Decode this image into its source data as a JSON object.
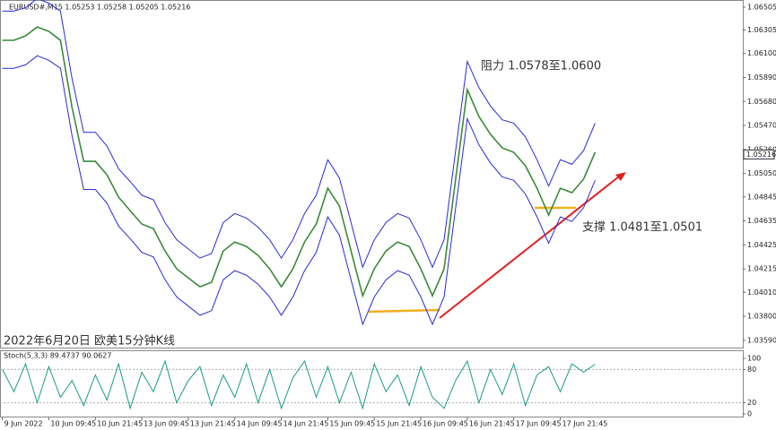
{
  "chart_data": [
    {
      "type": "line",
      "title": "EURUSD#,M15  1.05253 1.05258 1.05205 1.05216",
      "annotations": [
        "阻力 1.0578至1.0600",
        "支撑 1.0481至1.0501",
        "2022年6月20日 欧美15分钟K线"
      ],
      "price_label": 1.05216,
      "xlim": [
        -0.2,
        63.7
      ],
      "xticks": [
        {
          "value": 0,
          "label": "9 Jun 2022"
        },
        {
          "value": 4,
          "label": "10 Jun 09:45"
        },
        {
          "value": 8,
          "label": "10 Jun 21:45"
        },
        {
          "value": 12,
          "label": "13 Jun 09:45"
        },
        {
          "value": 16,
          "label": "13 Jun 21:45"
        },
        {
          "value": 20,
          "label": "14 Jun 09:45"
        },
        {
          "value": 24,
          "label": "14 Jun 21:45"
        },
        {
          "value": 28,
          "label": "15 Jun 09:45"
        },
        {
          "value": 32,
          "label": "15 Jun 21:45"
        },
        {
          "value": 36,
          "label": "16 Jun 09:45"
        },
        {
          "value": 40,
          "label": "16 Jun 21:45"
        },
        {
          "value": 44,
          "label": "17 Jun 09:45"
        },
        {
          "value": 48,
          "label": "17 Jun 21:45"
        }
      ],
      "ylim": [
        1.03527,
        1.06544
      ],
      "yticks": [
        1.06505,
        1.06305,
        {
          "value": 1.061,
          "label": "1.06100"
        },
        {
          "value": 1.0589,
          "label": "1.05890"
        },
        {
          "value": 1.0568,
          "label": "1.05680"
        },
        {
          "value": 1.0547,
          "label": "1.05470"
        },
        {
          "value": 1.0526,
          "label": "1.05260"
        },
        {
          "value": 1.0505,
          "label": "1.05050"
        },
        1.04845,
        1.04635,
        1.04425,
        1.04215,
        {
          "value": 1.0401,
          "label": "1.04010"
        },
        {
          "value": 1.038,
          "label": "1.03800"
        },
        {
          "value": 1.0359,
          "label": "1.03590"
        }
      ],
      "series": [
        {
          "color": "#3a8a3a",
          "values": [
            1.06215,
            1.06215,
            1.06254,
            1.06332,
            1.06293,
            1.06215,
            1.05627,
            1.05156,
            1.05156,
            1.05039,
            1.04843,
            1.04725,
            1.04608,
            1.04568,
            1.04372,
            1.04216,
            1.04137,
            1.04059,
            1.04098,
            1.04372,
            1.04451,
            1.04412,
            1.04333,
            1.04216,
            1.04059,
            1.04216,
            1.04451,
            1.04608,
            1.04921,
            1.04764,
            1.04372,
            1.0398,
            1.04216,
            1.04372,
            1.04451,
            1.04412,
            1.04216,
            1.0398,
            1.04216,
            1.05,
            1.05784,
            1.05548,
            1.05392,
            1.05274,
            1.05235,
            1.05117,
            1.04921,
            1.04686,
            1.04921,
            1.04882,
            1.05,
            1.05235
          ]
        },
        {
          "color": "#2a2ad0",
          "values": [
            1.0647,
            1.0647,
            1.065,
            1.0658,
            1.0654,
            1.0647,
            1.0588,
            1.0541,
            1.0541,
            1.0529,
            1.0509,
            1.0498,
            1.0486,
            1.0482,
            1.0462,
            1.0447,
            1.0439,
            1.0431,
            1.0435,
            1.0462,
            1.047,
            1.0466,
            1.0458,
            1.0447,
            1.0431,
            1.0447,
            1.047,
            1.0486,
            1.0517,
            1.0501,
            1.0462,
            1.0423,
            1.0447,
            1.0462,
            1.047,
            1.0466,
            1.0447,
            1.0423,
            1.0447,
            1.0525,
            1.0603,
            1.058,
            1.0564,
            1.0552,
            1.0549,
            1.0537,
            1.0517,
            1.0494,
            1.0517,
            1.0513,
            1.0525,
            1.0549
          ]
        },
        {
          "color": "#2a2ad0",
          "values": [
            1.0597,
            1.0597,
            1.06,
            1.0608,
            1.0604,
            1.0597,
            1.0538,
            1.0491,
            1.0491,
            1.0479,
            1.0459,
            1.0448,
            1.0436,
            1.0432,
            1.0412,
            1.0397,
            1.0389,
            1.0381,
            1.0385,
            1.0412,
            1.042,
            1.0416,
            1.0408,
            1.0397,
            1.0381,
            1.0397,
            1.042,
            1.0436,
            1.0467,
            1.0451,
            1.0412,
            1.0373,
            1.0397,
            1.0412,
            1.042,
            1.0416,
            1.0397,
            1.0373,
            1.0397,
            1.0475,
            1.0553,
            1.053,
            1.0514,
            1.0502,
            1.0499,
            1.0487,
            1.0467,
            1.0444,
            1.0467,
            1.0463,
            1.0475,
            1.0499
          ]
        }
      ]
    },
    {
      "type": "line",
      "title": "Stoch(5,3,3) 89.4737 90.0627",
      "xlim": [
        -0.2,
        63.7
      ],
      "ylim": [
        0,
        100
      ],
      "yticks": [
        100,
        80,
        20,
        0
      ],
      "series": [
        {
          "color": "#1a9a8a",
          "values": [
            80,
            40,
            90,
            20,
            85,
            30,
            60,
            15,
            70,
            25,
            90,
            10,
            75,
            40,
            95,
            20,
            60,
            85,
            15,
            70,
            30,
            90,
            20,
            80,
            10,
            65,
            95,
            30,
            85,
            20,
            75,
            10,
            90,
            40,
            70,
            15,
            85,
            30,
            10,
            60,
            95,
            20,
            80,
            35,
            90,
            15,
            70,
            85,
            40,
            90,
            75,
            89.4737
          ]
        }
      ]
    }
  ]
}
